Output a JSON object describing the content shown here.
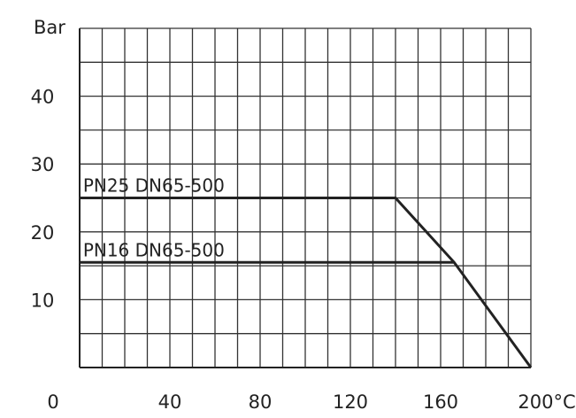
{
  "chart_data": {
    "type": "line",
    "ylabel": "Bar",
    "x_ticks": [
      "0",
      "40",
      "80",
      "120",
      "160",
      "200°C"
    ],
    "y_ticks": [
      "10",
      "20",
      "30",
      "40"
    ],
    "xlim": [
      0,
      200
    ],
    "ylim": [
      0,
      50
    ],
    "grid": true,
    "series": [
      {
        "name": "PN25 DN65-500",
        "points": [
          [
            0,
            25
          ],
          [
            140,
            25
          ],
          [
            166,
            15.5
          ],
          [
            200,
            0
          ]
        ]
      },
      {
        "name": "PN16 DN65-500",
        "points": [
          [
            0,
            15.5
          ],
          [
            166,
            15.5
          ]
        ]
      }
    ]
  }
}
